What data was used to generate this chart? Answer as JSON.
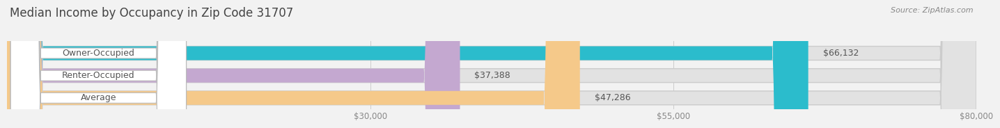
{
  "title": "Median Income by Occupancy in Zip Code 31707",
  "source": "Source: ZipAtlas.com",
  "categories": [
    "Owner-Occupied",
    "Renter-Occupied",
    "Average"
  ],
  "values": [
    66132,
    37388,
    47286
  ],
  "labels": [
    "$66,132",
    "$37,388",
    "$47,286"
  ],
  "bar_colors": [
    "#2bbccc",
    "#c4a8d0",
    "#f5c98a"
  ],
  "xlim": [
    0,
    80000
  ],
  "xticks": [
    30000,
    55000,
    80000
  ],
  "xticklabels": [
    "$30,000",
    "$55,000",
    "$80,000"
  ],
  "background_color": "#f2f2f2",
  "bar_bg_color": "#e2e2e2",
  "title_fontsize": 12,
  "label_fontsize": 9,
  "tick_fontsize": 8.5,
  "source_fontsize": 8
}
